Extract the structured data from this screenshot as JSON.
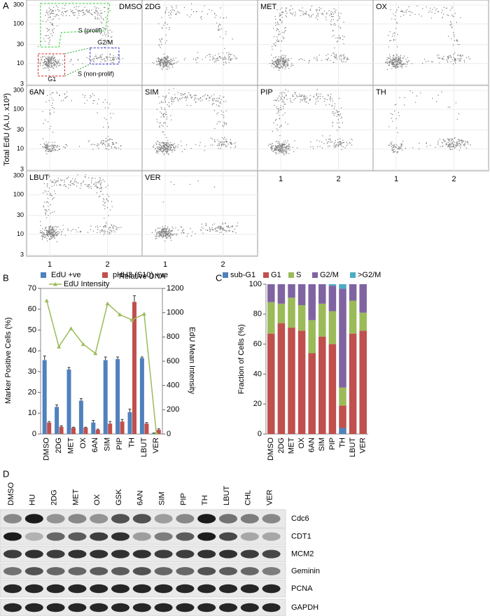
{
  "chart_data": [
    {
      "type": "scatter",
      "panel_label": "A",
      "ylabel": "Total EdU (A.U. x10³)",
      "xlabel": "Relative DNA",
      "log_y": true,
      "ylim": [
        2.8,
        400
      ],
      "yticks": [
        3,
        10,
        30,
        100,
        300
      ],
      "xlim": [
        0.6,
        2.6
      ],
      "xticks": [
        1,
        2
      ],
      "grid": true,
      "color": "#7f7f7f",
      "panels": [
        "DMSO",
        "2DG",
        "MET",
        "OX",
        "6AN",
        "SIM",
        "PIP",
        "TH",
        "LBUT",
        "VER"
      ],
      "gates": [
        {
          "label": "S (prolif)",
          "color": "#33cc33"
        },
        {
          "label": "G1",
          "color": "#d62728"
        },
        {
          "label": "G2/M",
          "color": "#3333cc"
        },
        {
          "label": "S (non-prolif)",
          "color": "#2e9a2e"
        }
      ]
    },
    {
      "type": "bar",
      "panel_label": "B",
      "ylabel": "Marker Positive Cells (%)",
      "y2label": "EdU Mean Intensity",
      "categories": [
        "DMSO",
        "2DG",
        "MET",
        "OX",
        "6AN",
        "SIM",
        "PIP",
        "TH",
        "LBUT",
        "VER"
      ],
      "ylim": [
        0,
        70
      ],
      "yticks": [
        0,
        10,
        20,
        30,
        40,
        50,
        60,
        70
      ],
      "y2lim": [
        0,
        1200
      ],
      "y2ticks": [
        0,
        200,
        400,
        600,
        800,
        1000,
        1200
      ],
      "series": [
        {
          "name": "EdU +ve",
          "color": "#4f81bd",
          "values": [
            35.5,
            13,
            31,
            16,
            5.5,
            35.5,
            36,
            10.5,
            36.5,
            0.5
          ],
          "errors": [
            2,
            1,
            1,
            1,
            1,
            1.5,
            1,
            1.5,
            0.5,
            0
          ]
        },
        {
          "name": "pHH3 (S10) +ve",
          "color": "#c0504d",
          "values": [
            5.5,
            3.5,
            3,
            3,
            2,
            5,
            6,
            63.5,
            5,
            2
          ],
          "errors": [
            0.5,
            0.5,
            0.3,
            0.3,
            0.3,
            1,
            1,
            3,
            0.5,
            0.5
          ]
        },
        {
          "name": "EdU Intensity",
          "color": "#9bbb59",
          "axis": "y2",
          "type": "line",
          "values": [
            1100,
            720,
            870,
            740,
            665,
            1075,
            985,
            940,
            990,
            10
          ]
        }
      ]
    },
    {
      "type": "stacked_bar",
      "panel_label": "C",
      "ylabel": "Fraction of Cells (%)",
      "categories": [
        "DMSO",
        "2DG",
        "MET",
        "OX",
        "6AN",
        "SIM",
        "PIP",
        "TH",
        "LBUT",
        "VER"
      ],
      "ylim": [
        0,
        100
      ],
      "yticks": [
        0,
        20,
        40,
        60,
        80,
        100
      ],
      "series": [
        {
          "name": "sub-G1",
          "color": "#4f81bd",
          "values": [
            0,
            0,
            0,
            0,
            0,
            0,
            0,
            4,
            0,
            0
          ]
        },
        {
          "name": "G1",
          "color": "#c0504d",
          "values": [
            67,
            74,
            71,
            69,
            54,
            65,
            60,
            15,
            67,
            69
          ]
        },
        {
          "name": "S",
          "color": "#9bbb59",
          "values": [
            21,
            13,
            20,
            17,
            22,
            22,
            22,
            12,
            22,
            12
          ]
        },
        {
          "name": "G2/M",
          "color": "#8064a2",
          "values": [
            12,
            13,
            9,
            14,
            24,
            13,
            17,
            66,
            11,
            19
          ]
        },
        {
          "name": ">G2/M",
          "color": "#4bacc6",
          "values": [
            0,
            0,
            0,
            0,
            0,
            0,
            1,
            3,
            0,
            0
          ]
        }
      ]
    }
  ],
  "blot": {
    "panel_label": "D",
    "lanes": [
      "DMSO",
      "HU",
      "2DG",
      "MET",
      "OX",
      "GSK",
      "6AN",
      "SIM",
      "PIP",
      "TH",
      "LBUT",
      "CHL",
      "VER"
    ],
    "proteins": [
      "Cdc6",
      "CDT1",
      "MCM2",
      "Geminin",
      "PCNA",
      "GAPDH"
    ]
  }
}
